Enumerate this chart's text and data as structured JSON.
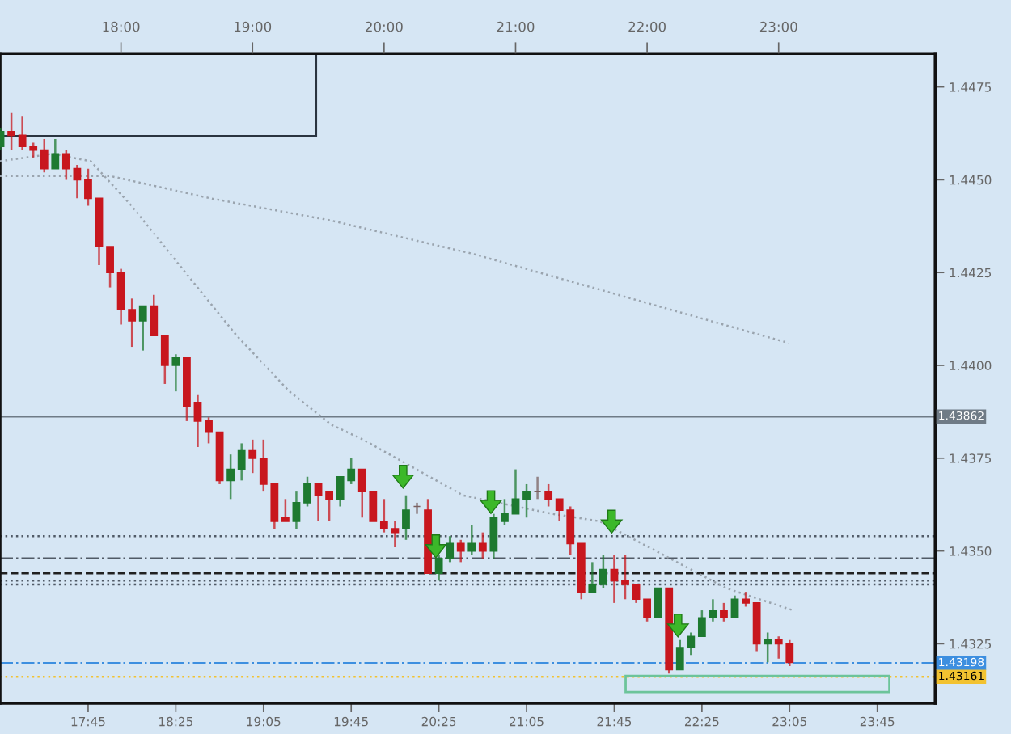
{
  "chart_data": {
    "type": "candlestick",
    "x": [
      17.0833,
      17.1667,
      17.25,
      17.3333,
      17.4167,
      17.5,
      17.5833,
      17.6667,
      17.75,
      17.8333,
      17.9167,
      18.0,
      18.0833,
      18.1667,
      18.25,
      18.3333,
      18.4167,
      18.5,
      18.5833,
      18.6667,
      18.75,
      18.8333,
      18.9167,
      19.0,
      19.0833,
      19.1667,
      19.25,
      19.3333,
      19.4167,
      19.5,
      19.5833,
      19.6667,
      19.75,
      19.8333,
      19.9167,
      20.0,
      20.0833,
      20.1667,
      20.25,
      20.3333,
      20.4167,
      20.5,
      20.5833,
      20.6667,
      20.75,
      20.8333,
      20.9167,
      21.0,
      21.0833,
      21.1667,
      21.25,
      21.3333,
      21.4167,
      21.5,
      21.5833,
      21.6667,
      21.75,
      21.8333,
      21.9167,
      22.0,
      22.0833,
      22.1667,
      22.25,
      22.3333,
      22.4167,
      22.5,
      22.5833,
      22.6667,
      22.75,
      22.8333,
      22.9167,
      23.0,
      23.0833
    ],
    "ohlc": [
      [
        1.4459,
        1.4464,
        1.4458,
        1.4463
      ],
      [
        1.4463,
        1.4468,
        1.4458,
        1.4462
      ],
      [
        1.4462,
        1.4467,
        1.4458,
        1.4459
      ],
      [
        1.4459,
        1.446,
        1.4456,
        1.4458
      ],
      [
        1.4458,
        1.4461,
        1.4452,
        1.4453
      ],
      [
        1.4453,
        1.4461,
        1.4453,
        1.4457
      ],
      [
        1.4457,
        1.4458,
        1.445,
        1.4453
      ],
      [
        1.4453,
        1.4454,
        1.4445,
        1.445
      ],
      [
        1.445,
        1.4453,
        1.4443,
        1.4445
      ],
      [
        1.4445,
        1.4445,
        1.4427,
        1.4432
      ],
      [
        1.4432,
        1.4432,
        1.4421,
        1.4425
      ],
      [
        1.4425,
        1.4426,
        1.4411,
        1.4415
      ],
      [
        1.4415,
        1.4418,
        1.4405,
        1.4412
      ],
      [
        1.4412,
        1.4416,
        1.4404,
        1.4416
      ],
      [
        1.4416,
        1.4419,
        1.4408,
        1.4408
      ],
      [
        1.4408,
        1.4408,
        1.4395,
        1.44
      ],
      [
        1.44,
        1.4403,
        1.4393,
        1.4402
      ],
      [
        1.4402,
        1.4402,
        1.4385,
        1.4389
      ],
      [
        1.439,
        1.4392,
        1.4378,
        1.4385
      ],
      [
        1.4385,
        1.4386,
        1.4379,
        1.4382
      ],
      [
        1.4382,
        1.4382,
        1.4368,
        1.4369
      ],
      [
        1.4369,
        1.4376,
        1.4364,
        1.4372
      ],
      [
        1.4372,
        1.4379,
        1.4369,
        1.4377
      ],
      [
        1.4377,
        1.438,
        1.4371,
        1.4375
      ],
      [
        1.4375,
        1.438,
        1.4366,
        1.4368
      ],
      [
        1.4368,
        1.4368,
        1.4356,
        1.4358
      ],
      [
        1.4359,
        1.4364,
        1.4358,
        1.4358
      ],
      [
        1.4358,
        1.4366,
        1.4356,
        1.4363
      ],
      [
        1.4363,
        1.437,
        1.4362,
        1.4368
      ],
      [
        1.4368,
        1.4368,
        1.4358,
        1.4365
      ],
      [
        1.4366,
        1.4366,
        1.4358,
        1.4364
      ],
      [
        1.4364,
        1.437,
        1.4362,
        1.437
      ],
      [
        1.4369,
        1.4375,
        1.4368,
        1.4372
      ],
      [
        1.4372,
        1.4372,
        1.4359,
        1.4366
      ],
      [
        1.4366,
        1.4366,
        1.4358,
        1.4358
      ],
      [
        1.4358,
        1.4364,
        1.4355,
        1.4356
      ],
      [
        1.4356,
        1.4358,
        1.4351,
        1.4355
      ],
      [
        1.4356,
        1.4365,
        1.4353,
        1.4361
      ],
      [
        1.4362,
        1.4363,
        1.436,
        1.4362
      ],
      [
        1.4361,
        1.4364,
        1.4344,
        1.4344
      ],
      [
        1.4344,
        1.4349,
        1.4342,
        1.4348
      ],
      [
        1.4348,
        1.4354,
        1.4347,
        1.4352
      ],
      [
        1.4352,
        1.4353,
        1.4347,
        1.435
      ],
      [
        1.435,
        1.4357,
        1.4349,
        1.4352
      ],
      [
        1.4352,
        1.4355,
        1.4348,
        1.435
      ],
      [
        1.435,
        1.436,
        1.4348,
        1.4359
      ],
      [
        1.4358,
        1.4364,
        1.4357,
        1.436
      ],
      [
        1.436,
        1.4372,
        1.436,
        1.4364
      ],
      [
        1.4364,
        1.4368,
        1.4359,
        1.4366
      ],
      [
        1.4366,
        1.437,
        1.4364,
        1.4366
      ],
      [
        1.4366,
        1.4368,
        1.4362,
        1.4364
      ],
      [
        1.4364,
        1.4364,
        1.4358,
        1.4361
      ],
      [
        1.4361,
        1.4362,
        1.4349,
        1.4352
      ],
      [
        1.4352,
        1.4352,
        1.4337,
        1.4339
      ],
      [
        1.4339,
        1.4347,
        1.4339,
        1.4341
      ],
      [
        1.4341,
        1.4349,
        1.434,
        1.4345
      ],
      [
        1.4345,
        1.4349,
        1.4336,
        1.4342
      ],
      [
        1.4342,
        1.4349,
        1.4337,
        1.4341
      ],
      [
        1.4341,
        1.4341,
        1.4336,
        1.4337
      ],
      [
        1.4337,
        1.4337,
        1.4331,
        1.4332
      ],
      [
        1.4332,
        1.434,
        1.4332,
        1.434
      ],
      [
        1.434,
        1.434,
        1.4317,
        1.4318
      ],
      [
        1.4318,
        1.4326,
        1.4318,
        1.4324
      ],
      [
        1.4324,
        1.4328,
        1.4322,
        1.4327
      ],
      [
        1.4327,
        1.4334,
        1.4327,
        1.4332
      ],
      [
        1.4332,
        1.4337,
        1.4331,
        1.4334
      ],
      [
        1.4334,
        1.4336,
        1.4331,
        1.4332
      ],
      [
        1.4332,
        1.4338,
        1.4332,
        1.4337
      ],
      [
        1.4337,
        1.4339,
        1.4335,
        1.4336
      ],
      [
        1.4336,
        1.4336,
        1.4323,
        1.4325
      ],
      [
        1.4325,
        1.4328,
        1.432,
        1.4326
      ],
      [
        1.4326,
        1.4327,
        1.4321,
        1.4325
      ],
      [
        1.4325,
        1.4326,
        1.4319,
        1.432
      ]
    ],
    "series": [
      {
        "type": "line",
        "color": "#9aa4ae",
        "line_style": "dotted",
        "x": [
          17.08,
          17.92,
          18.68,
          19.6,
          20.68,
          21.88,
          23.08
        ],
        "values": [
          1.4451,
          1.4451,
          1.4445,
          1.4439,
          1.443,
          1.4418,
          1.4406
        ]
      },
      {
        "type": "line",
        "color": "#9aa4ae",
        "line_style": "dotted",
        "x": [
          17.08,
          17.48,
          17.77,
          18.08,
          18.49,
          18.88,
          19.28,
          19.6,
          19.84,
          20.6,
          21.28,
          21.64,
          22.12,
          22.6,
          23.11
        ],
        "values": [
          1.4455,
          1.4457,
          1.4455,
          1.4443,
          1.4425,
          1.4408,
          1.4393,
          1.4384,
          1.438,
          1.4365,
          1.436,
          1.4358,
          1.4349,
          1.434,
          1.4334
        ]
      }
    ],
    "xlim": [
      17.08,
      24.19
    ],
    "ylim": [
      1.4309,
      1.4484
    ],
    "xticks": [
      {
        "value": 17.75,
        "label": "17:45"
      },
      {
        "value": 18.4167,
        "label": "18:25"
      },
      {
        "value": 19.0833,
        "label": "19:05"
      },
      {
        "value": 19.75,
        "label": "19:45"
      },
      {
        "value": 20.4167,
        "label": "20:25"
      },
      {
        "value": 21.0833,
        "label": "21:05"
      },
      {
        "value": 21.75,
        "label": "21:45"
      },
      {
        "value": 22.4167,
        "label": "22:25"
      },
      {
        "value": 23.0833,
        "label": "23:05"
      },
      {
        "value": 23.75,
        "label": "23:45"
      }
    ],
    "x2lim": [
      17.08,
      24.19
    ],
    "x2ticks": [
      {
        "value": 18,
        "label": "18:00"
      },
      {
        "value": 19,
        "label": "19:00"
      },
      {
        "value": 20,
        "label": "20:00"
      },
      {
        "value": 21,
        "label": "21:00"
      },
      {
        "value": 22,
        "label": "22:00"
      },
      {
        "value": 23,
        "label": "23:00"
      }
    ],
    "yticks": [
      1.4325,
      {
        "value": 1.435,
        "label": "1.4350"
      },
      1.4375,
      {
        "value": 1.44,
        "label": "1.4400"
      },
      1.4425,
      {
        "value": 1.445,
        "label": "1.4450"
      },
      1.4475
    ],
    "ref_lines": [
      {
        "axis": "y",
        "value": 1.43862,
        "label": "1.43862",
        "color": "#6f7b86",
        "line_style": "solid"
      },
      {
        "axis": "y",
        "value": 1.4354,
        "color": "#505a66",
        "line_style": "dotted"
      },
      {
        "axis": "y",
        "value": 1.4348,
        "color": "#505a66",
        "line_style": "dashdot"
      },
      {
        "axis": "y",
        "value": 1.4344,
        "color": "#202020",
        "line_style": "dashed"
      },
      {
        "axis": "y",
        "value": 1.4342,
        "color": "#505a66",
        "line_style": "dotted"
      },
      {
        "axis": "y",
        "value": 1.4341,
        "color": "#505a66",
        "line_style": "dotted"
      },
      {
        "axis": "y",
        "value": 1.43198,
        "label": "1.43198",
        "color": "#3d8fe0",
        "line_style": "dashdot"
      },
      {
        "axis": "y",
        "value": 1.43161,
        "label": "1.43161",
        "color": "#f2c230",
        "line_style": "dotted"
      }
    ]
  }
}
